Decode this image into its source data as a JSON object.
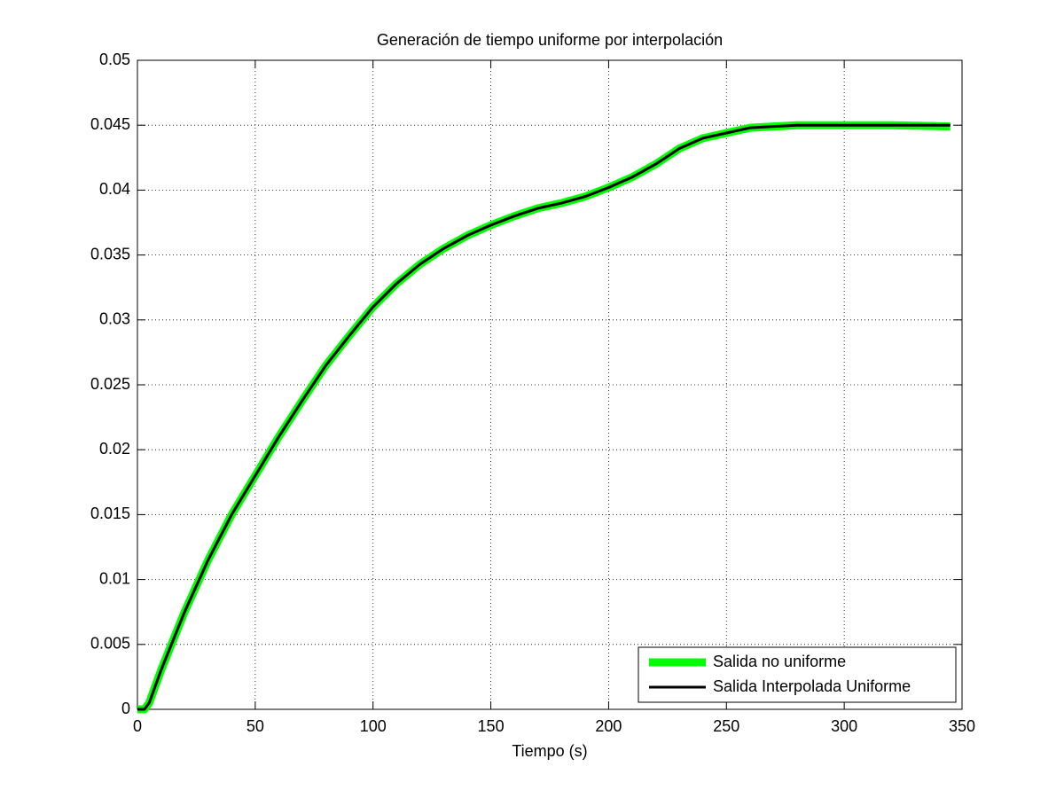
{
  "chart_data": {
    "type": "line",
    "title": "Generación de tiempo uniforme por interpolación",
    "x_label": "Tiempo (s)",
    "x": [
      0,
      3,
      5,
      10,
      20,
      30,
      40,
      50,
      60,
      70,
      80,
      90,
      100,
      110,
      120,
      130,
      140,
      150,
      160,
      170,
      180,
      190,
      200,
      210,
      220,
      230,
      240,
      250,
      260,
      270,
      280,
      300,
      320,
      345
    ],
    "series": [
      {
        "name": "Salida no uniforme",
        "color": "#00ff00",
        "width": 9,
        "values": [
          0,
          0,
          0.0005,
          0.003,
          0.0075,
          0.0115,
          0.015,
          0.018,
          0.021,
          0.0238,
          0.0265,
          0.0288,
          0.031,
          0.0328,
          0.0343,
          0.0355,
          0.0365,
          0.0373,
          0.038,
          0.0386,
          0.039,
          0.0395,
          0.0402,
          0.041,
          0.042,
          0.0432,
          0.044,
          0.0444,
          0.0448,
          0.0449,
          0.045,
          0.045,
          0.045,
          0.0449
        ]
      },
      {
        "name": "Salida Interpolada Uniforme",
        "color": "#000000",
        "width": 3,
        "values": [
          0,
          0,
          0.0005,
          0.003,
          0.0075,
          0.0115,
          0.015,
          0.018,
          0.021,
          0.0238,
          0.0265,
          0.0288,
          0.031,
          0.0328,
          0.0343,
          0.0355,
          0.0365,
          0.0373,
          0.038,
          0.0386,
          0.039,
          0.0395,
          0.0402,
          0.041,
          0.042,
          0.0432,
          0.044,
          0.0444,
          0.0448,
          0.0449,
          0.045,
          0.045,
          0.045,
          0.045
        ]
      }
    ],
    "xlim": [
      0,
      350
    ],
    "xticks": [
      0,
      50,
      100,
      150,
      200,
      250,
      300,
      350
    ],
    "ylim": [
      0,
      0.05
    ],
    "yticks": [
      0,
      0.005,
      0.01,
      0.015,
      0.02,
      0.025,
      0.03,
      0.035,
      0.04,
      0.045,
      0.05
    ],
    "grid": true,
    "legend": "lower right"
  }
}
